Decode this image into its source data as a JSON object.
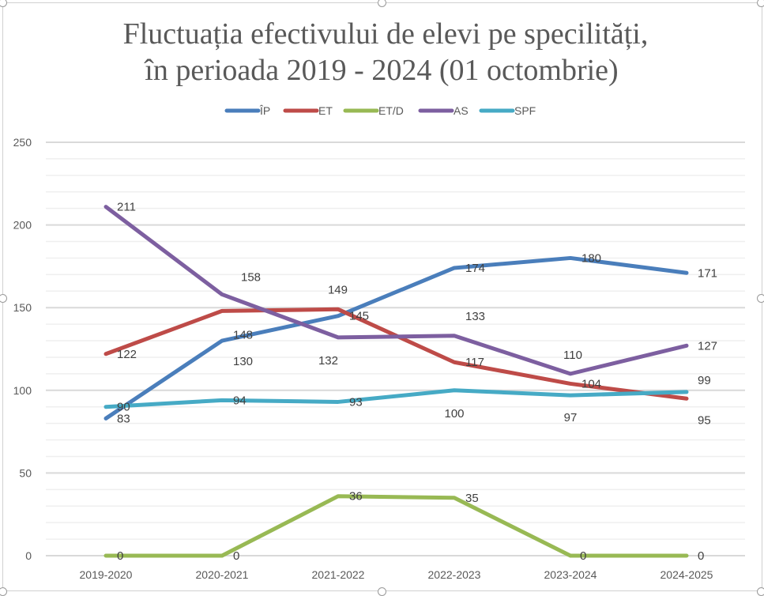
{
  "chart_data": {
    "type": "line",
    "title": [
      "Fluctuația efectivului de elevi pe specilități,",
      "în perioada 2019 - 2024  (01 octombrie)"
    ],
    "xlabel": "",
    "ylabel": "",
    "categories": [
      "2019-2020",
      "2020-2021",
      "2021-2022",
      "2022-2023",
      "2023-2024",
      "2024-2025"
    ],
    "ylim": [
      0,
      250
    ],
    "yticks": [
      0,
      50,
      100,
      150,
      200,
      250
    ],
    "minor_grid_step": 10,
    "grid": true,
    "legend": "top",
    "series": [
      {
        "name": "ÎP",
        "color": "#4a7ebb",
        "values": [
          83,
          130,
          145,
          174,
          180,
          171
        ]
      },
      {
        "name": "ET",
        "color": "#be4b48",
        "values": [
          122,
          148,
          149,
          117,
          104,
          95
        ]
      },
      {
        "name": "ET/D",
        "color": "#98b954",
        "values": [
          0,
          0,
          36,
          35,
          0,
          0
        ]
      },
      {
        "name": "AS",
        "color": "#7d5fa0",
        "values": [
          211,
          158,
          132,
          133,
          110,
          127
        ]
      },
      {
        "name": "SPF",
        "color": "#46aac5",
        "values": [
          90,
          94,
          93,
          100,
          97,
          99
        ]
      }
    ]
  }
}
